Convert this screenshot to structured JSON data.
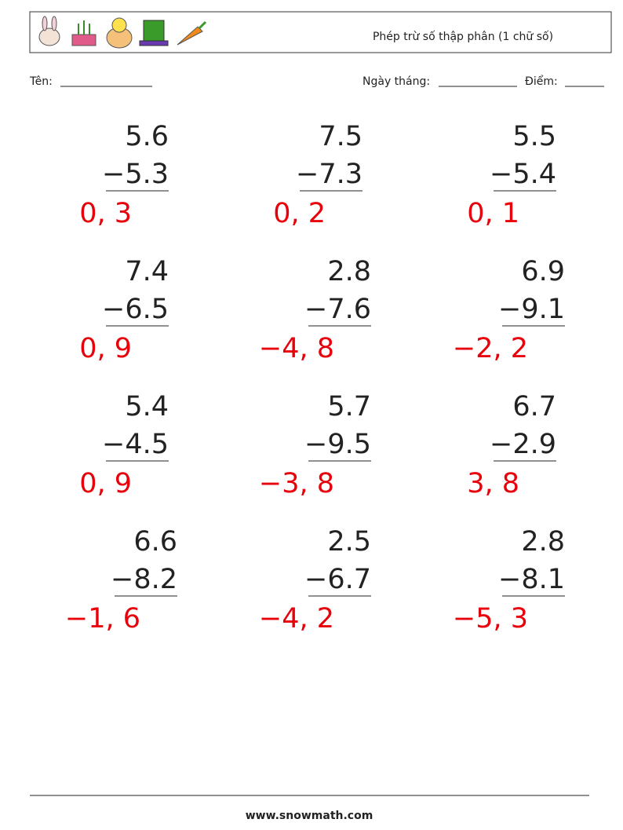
{
  "header": {
    "title": "Phép trừ số thập phân (1 chữ số)"
  },
  "fields": {
    "name": "Tên:",
    "date": "Ngày tháng:",
    "score": "Điểm:"
  },
  "problems": [
    {
      "top": "5.6",
      "bottom": "−5.3",
      "answer": "0, 3"
    },
    {
      "top": "7.5",
      "bottom": "−7.3",
      "answer": "0, 2"
    },
    {
      "top": "5.5",
      "bottom": "−5.4",
      "answer": "0, 1"
    },
    {
      "top": "7.4",
      "bottom": "−6.5",
      "answer": "0, 9"
    },
    {
      "top": "2.8",
      "bottom": "−7.6",
      "answer": "−4, 8"
    },
    {
      "top": "6.9",
      "bottom": "−9.1",
      "answer": "−2, 2"
    },
    {
      "top": "5.4",
      "bottom": "−4.5",
      "answer": "0, 9"
    },
    {
      "top": "5.7",
      "bottom": "−9.5",
      "answer": "−3, 8"
    },
    {
      "top": "6.7",
      "bottom": "−2.9",
      "answer": "3, 8"
    },
    {
      "top": "6.6",
      "bottom": "−8.2",
      "answer": "−1, 6"
    },
    {
      "top": "2.5",
      "bottom": "−6.7",
      "answer": "−4, 2"
    },
    {
      "top": "2.8",
      "bottom": "−8.1",
      "answer": "−5, 3"
    }
  ],
  "footer": {
    "site": "www.snowmath.com"
  }
}
